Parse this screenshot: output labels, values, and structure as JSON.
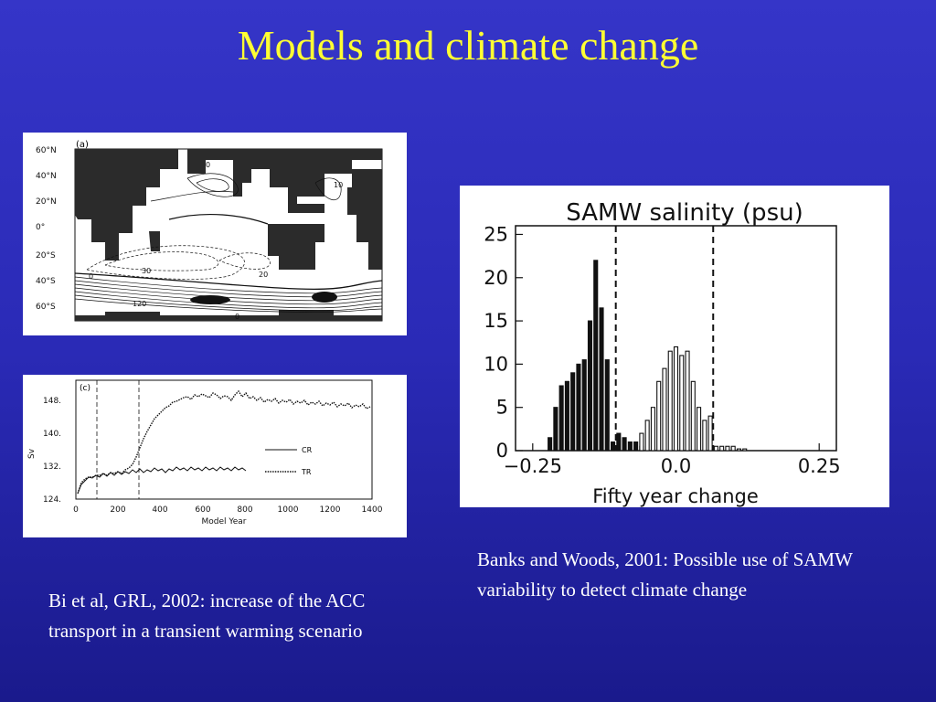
{
  "slide": {
    "title": "Models and climate change"
  },
  "map_figure": {
    "panel_label": "(a)",
    "lat_labels": [
      "60°N",
      "40°N",
      "20°N",
      "0°",
      "20°S",
      "40°S",
      "60°S"
    ],
    "contour_labels": [
      "0",
      "10",
      "30",
      "20",
      "0",
      "120",
      "0"
    ]
  },
  "timeseries_figure": {
    "panel_label": "(c)",
    "ylabel": "Sv",
    "xlabel": "Model Year",
    "y_ticks": [
      "148.",
      "140.",
      "132.",
      "124."
    ],
    "x_ticks": [
      "0",
      "200",
      "400",
      "600",
      "800",
      "1000",
      "1200",
      "1400"
    ],
    "legend": [
      {
        "label": "CR",
        "style": "solid"
      },
      {
        "label": "TR",
        "style": "dotted"
      }
    ]
  },
  "chart_data": {
    "type": "bar",
    "title": "SAMW salinity (psu)",
    "xlabel": "Fifty year change",
    "ylabel": "",
    "xlim": [
      -0.28,
      0.28
    ],
    "ylim": [
      0,
      26
    ],
    "x_ticks": [
      "−0.25",
      "0.0",
      "0.25"
    ],
    "y_ticks": [
      "25",
      "20",
      "15",
      "10",
      "5",
      "0"
    ],
    "vlines": [
      -0.105,
      0.065
    ],
    "series": [
      {
        "fill": "solid",
        "x": [
          -0.22,
          -0.21,
          -0.2,
          -0.19,
          -0.18,
          -0.17,
          -0.16,
          -0.15,
          -0.14,
          -0.13,
          -0.12,
          -0.11,
          -0.1,
          -0.09,
          -0.08,
          -0.07,
          -0.06
        ],
        "values": [
          1.5,
          5,
          7.5,
          8,
          9,
          10,
          10.5,
          15,
          22,
          16.5,
          10.5,
          1,
          2,
          1.5,
          1,
          1,
          0.5
        ]
      },
      {
        "fill": "hollow",
        "x": [
          -0.06,
          -0.05,
          -0.04,
          -0.03,
          -0.02,
          -0.01,
          0.0,
          0.01,
          0.02,
          0.03,
          0.04,
          0.05,
          0.06,
          0.07,
          0.08,
          0.09,
          0.1,
          0.11,
          0.12
        ],
        "values": [
          2,
          3.5,
          5,
          8,
          9.5,
          11.5,
          12,
          11,
          11.5,
          8,
          5,
          3.5,
          4,
          0.5,
          0.5,
          0.5,
          0.5,
          0.2,
          0.2
        ]
      }
    ]
  },
  "captions": {
    "left": "Bi et al, GRL, 2002: increase of the ACC transport in a transient warming scenario",
    "right": "Banks and Woods, 2001: Possible use of SAMW variability to detect climate change"
  }
}
